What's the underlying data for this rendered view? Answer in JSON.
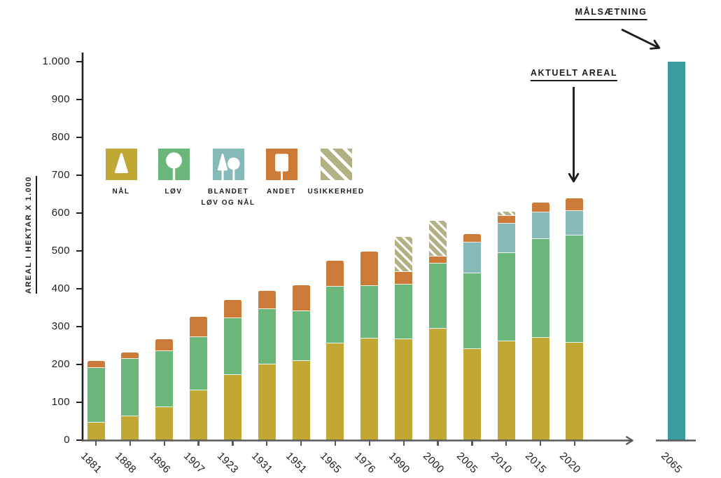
{
  "annotations": {
    "target": "MÅLSÆTNING",
    "current": "AKTUELT AREAL"
  },
  "legend": [
    {
      "label": "NÅL",
      "key": "naal"
    },
    {
      "label": "LØV",
      "key": "loev"
    },
    {
      "label": "BLANDET\nLØV OG NÅL",
      "key": "blandet"
    },
    {
      "label": "ANDET",
      "key": "andet"
    },
    {
      "label": "USIKKERHED",
      "key": "usikkerhed"
    }
  ],
  "colors": {
    "naal": "#c1a733",
    "loev": "#6bb679",
    "blandet": "#85bab8",
    "andet": "#cc7a38",
    "usikkerhed": "#b2b183",
    "maalsaetning": "#3c9da1",
    "axis_gray": "#58595b",
    "axis_black": "#231f20",
    "text": "#1d1d1b"
  },
  "chart_data": {
    "type": "bar",
    "stacked": true,
    "title": "",
    "xlabel": "",
    "ylabel": "AREAL I HEKTAR X 1.000",
    "ylim": [
      0,
      1000
    ],
    "grid": false,
    "legend_position": "inside-top-left",
    "y_ticks": [
      {
        "label": "0",
        "value": 0
      },
      {
        "label": "100",
        "value": 100
      },
      {
        "label": "200",
        "value": 200
      },
      {
        "label": "300",
        "value": 300
      },
      {
        "label": "400",
        "value": 400
      },
      {
        "label": "500",
        "value": 500
      },
      {
        "label": "600",
        "value": 600
      },
      {
        "label": "700",
        "value": 700
      },
      {
        "label": "800",
        "value": 800
      },
      {
        "label": "900",
        "value": 900
      },
      {
        "label": "1.000",
        "value": 1000
      }
    ],
    "categories": [
      "1881",
      "1888",
      "1896",
      "1907",
      "1923",
      "1931",
      "1951",
      "1965",
      "1976",
      "1990",
      "2000",
      "2005",
      "2010",
      "2015",
      "2020"
    ],
    "series": [
      {
        "name": "NÅL",
        "key": "naal",
        "values": [
          46,
          63,
          88,
          131,
          172,
          200,
          210,
          255,
          268,
          266,
          294,
          241,
          261,
          271,
          257
        ]
      },
      {
        "name": "LØV",
        "key": "loev",
        "values": [
          145,
          152,
          147,
          141,
          150,
          147,
          131,
          151,
          140,
          145,
          173,
          200,
          234,
          261,
          284
        ]
      },
      {
        "name": "BLANDET LØV OG NÅL",
        "key": "blandet",
        "values": [
          0,
          0,
          0,
          0,
          0,
          0,
          0,
          0,
          0,
          0,
          0,
          81,
          77,
          70,
          65
        ]
      },
      {
        "name": "ANDET",
        "key": "andet",
        "values": [
          18,
          17,
          31,
          54,
          48,
          47,
          69,
          69,
          90,
          33,
          18,
          22,
          20,
          26,
          33
        ]
      },
      {
        "name": "USIKKERHED",
        "key": "usikkerhed",
        "values": [
          0,
          0,
          0,
          0,
          0,
          0,
          0,
          0,
          0,
          93,
          95,
          0,
          11,
          0,
          0
        ]
      }
    ],
    "totals": [
      209,
      232,
      266,
      326,
      370,
      394,
      410,
      475,
      498,
      537,
      580,
      544,
      603,
      628,
      639
    ],
    "target_bar": {
      "category": "2065",
      "value": 1000,
      "series": "MÅLSÆTNING"
    },
    "current_bar_category": "2020"
  }
}
